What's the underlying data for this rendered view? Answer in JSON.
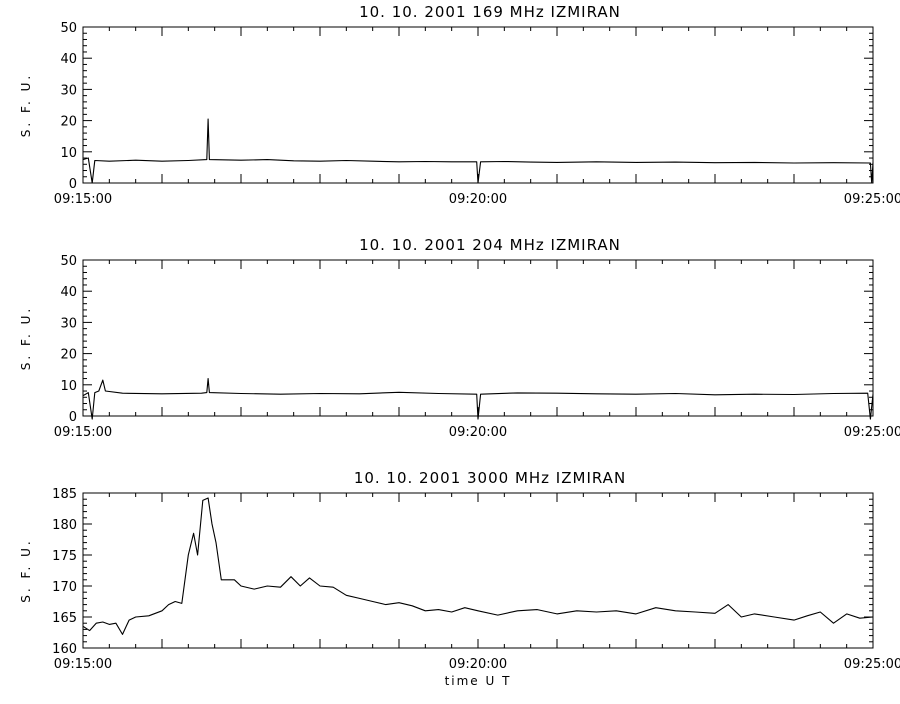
{
  "chart_data": [
    {
      "type": "line",
      "title": "10.  10.  2001    169  MHz    IZMIRAN",
      "ylabel": "S. F. U.",
      "xlabel": "",
      "ylim": [
        0,
        50
      ],
      "yticks": [
        0,
        10,
        20,
        30,
        40,
        50
      ],
      "xlim": [
        "09:15:00",
        "09:25:00"
      ],
      "xticks": [
        "09:15:00",
        "09:20:00",
        "09:25:00"
      ],
      "grid": false,
      "series": [
        {
          "points": [
            [
              "09:15:00",
              7.5
            ],
            [
              "09:15:04",
              8
            ],
            [
              "09:15:07",
              0
            ],
            [
              "09:15:09",
              7.2
            ],
            [
              "09:15:20",
              7.0
            ],
            [
              "09:15:40",
              7.3
            ],
            [
              "09:16:00",
              7.0
            ],
            [
              "09:16:20",
              7.2
            ],
            [
              "09:16:34",
              7.5
            ],
            [
              "09:16:35",
              20.5
            ],
            [
              "09:16:36",
              7.5
            ],
            [
              "09:17:00",
              7.3
            ],
            [
              "09:17:20",
              7.5
            ],
            [
              "09:17:40",
              7.1
            ],
            [
              "09:18:00",
              7.0
            ],
            [
              "09:18:20",
              7.2
            ],
            [
              "09:18:40",
              7.0
            ],
            [
              "09:19:00",
              6.8
            ],
            [
              "09:19:20",
              6.9
            ],
            [
              "09:19:40",
              6.8
            ],
            [
              "09:19:59",
              6.8
            ],
            [
              "09:20:00",
              0
            ],
            [
              "09:20:02",
              6.8
            ],
            [
              "09:20:20",
              6.9
            ],
            [
              "09:20:40",
              6.7
            ],
            [
              "09:21:00",
              6.6
            ],
            [
              "09:21:30",
              6.8
            ],
            [
              "09:22:00",
              6.6
            ],
            [
              "09:22:30",
              6.7
            ],
            [
              "09:23:00",
              6.5
            ],
            [
              "09:23:30",
              6.6
            ],
            [
              "09:24:00",
              6.4
            ],
            [
              "09:24:30",
              6.5
            ],
            [
              "09:24:58",
              6.4
            ],
            [
              "09:24:59",
              0
            ],
            [
              "09:25:00",
              6.5
            ]
          ]
        }
      ]
    },
    {
      "type": "line",
      "title": "10.  10.  2001    204  MHz    IZMIRAN",
      "ylabel": "S. F. U.",
      "xlabel": "",
      "ylim": [
        0,
        50
      ],
      "yticks": [
        0,
        10,
        20,
        30,
        40,
        50
      ],
      "xlim": [
        "09:15:00",
        "09:25:00"
      ],
      "xticks": [
        "09:15:00",
        "09:20:00",
        "09:25:00"
      ],
      "grid": false,
      "series": [
        {
          "points": [
            [
              "09:15:00",
              6.5
            ],
            [
              "09:15:04",
              7.5
            ],
            [
              "09:15:07",
              -1
            ],
            [
              "09:15:09",
              7.5
            ],
            [
              "09:15:12",
              8
            ],
            [
              "09:15:15",
              11.5
            ],
            [
              "09:15:17",
              8
            ],
            [
              "09:15:30",
              7.3
            ],
            [
              "09:16:00",
              7.1
            ],
            [
              "09:16:30",
              7.3
            ],
            [
              "09:16:34",
              7.5
            ],
            [
              "09:16:35",
              12
            ],
            [
              "09:16:36",
              7.5
            ],
            [
              "09:17:00",
              7.2
            ],
            [
              "09:17:30",
              7.0
            ],
            [
              "09:18:00",
              7.2
            ],
            [
              "09:18:30",
              7.1
            ],
            [
              "09:19:00",
              7.6
            ],
            [
              "09:19:30",
              7.2
            ],
            [
              "09:19:59",
              7.0
            ],
            [
              "09:20:00",
              -1
            ],
            [
              "09:20:02",
              7.0
            ],
            [
              "09:20:30",
              7.4
            ],
            [
              "09:21:00",
              7.3
            ],
            [
              "09:21:30",
              7.1
            ],
            [
              "09:22:00",
              7.0
            ],
            [
              "09:22:30",
              7.2
            ],
            [
              "09:23:00",
              6.8
            ],
            [
              "09:23:30",
              7.0
            ],
            [
              "09:24:00",
              6.9
            ],
            [
              "09:24:30",
              7.2
            ],
            [
              "09:24:56",
              7.3
            ],
            [
              "09:24:58",
              -1
            ],
            [
              "09:25:00",
              7.0
            ]
          ]
        }
      ]
    },
    {
      "type": "line",
      "title": "10.  10.  2001    3000  MHz    IZMIRAN",
      "ylabel": "S. F. U.",
      "xlabel": "time   U T",
      "ylim": [
        160,
        185
      ],
      "yticks": [
        160,
        165,
        170,
        175,
        180,
        185
      ],
      "xlim": [
        "09:15:00",
        "09:25:00"
      ],
      "xticks": [
        "09:15:00",
        "09:20:00",
        "09:25:00"
      ],
      "grid": false,
      "series": [
        {
          "points": [
            [
              "09:15:00",
              163.5
            ],
            [
              "09:15:05",
              162.8
            ],
            [
              "09:15:10",
              164.0
            ],
            [
              "09:15:15",
              164.2
            ],
            [
              "09:15:20",
              163.8
            ],
            [
              "09:15:25",
              164.0
            ],
            [
              "09:15:30",
              162.2
            ],
            [
              "09:15:35",
              164.5
            ],
            [
              "09:15:40",
              165.0
            ],
            [
              "09:15:50",
              165.2
            ],
            [
              "09:16:00",
              166.0
            ],
            [
              "09:16:05",
              167.0
            ],
            [
              "09:16:10",
              167.5
            ],
            [
              "09:16:15",
              167.2
            ],
            [
              "09:16:20",
              175.0
            ],
            [
              "09:16:24",
              178.5
            ],
            [
              "09:16:27",
              175.0
            ],
            [
              "09:16:31",
              183.8
            ],
            [
              "09:16:35",
              184.2
            ],
            [
              "09:16:38",
              180.0
            ],
            [
              "09:16:41",
              177.0
            ],
            [
              "09:16:45",
              171.0
            ],
            [
              "09:16:55",
              171.0
            ],
            [
              "09:17:00",
              170.0
            ],
            [
              "09:17:10",
              169.5
            ],
            [
              "09:17:20",
              170.0
            ],
            [
              "09:17:30",
              169.8
            ],
            [
              "09:17:38",
              171.5
            ],
            [
              "09:17:45",
              170.0
            ],
            [
              "09:17:52",
              171.3
            ],
            [
              "09:18:00",
              170.0
            ],
            [
              "09:18:10",
              169.8
            ],
            [
              "09:18:20",
              168.5
            ],
            [
              "09:18:30",
              168.0
            ],
            [
              "09:18:40",
              167.5
            ],
            [
              "09:18:50",
              167.0
            ],
            [
              "09:19:00",
              167.3
            ],
            [
              "09:19:10",
              166.8
            ],
            [
              "09:19:20",
              166.0
            ],
            [
              "09:19:30",
              166.2
            ],
            [
              "09:19:40",
              165.8
            ],
            [
              "09:19:50",
              166.5
            ],
            [
              "09:20:00",
              166.0
            ],
            [
              "09:20:15",
              165.3
            ],
            [
              "09:20:30",
              166.0
            ],
            [
              "09:20:45",
              166.2
            ],
            [
              "09:21:00",
              165.5
            ],
            [
              "09:21:15",
              166.0
            ],
            [
              "09:21:30",
              165.8
            ],
            [
              "09:21:45",
              166.0
            ],
            [
              "09:22:00",
              165.5
            ],
            [
              "09:22:15",
              166.5
            ],
            [
              "09:22:30",
              166.0
            ],
            [
              "09:22:45",
              165.8
            ],
            [
              "09:23:00",
              165.6
            ],
            [
              "09:23:10",
              167.0
            ],
            [
              "09:23:20",
              165.0
            ],
            [
              "09:23:30",
              165.5
            ],
            [
              "09:23:45",
              165.0
            ],
            [
              "09:24:00",
              164.5
            ],
            [
              "09:24:10",
              165.2
            ],
            [
              "09:24:20",
              165.8
            ],
            [
              "09:24:30",
              164.0
            ],
            [
              "09:24:40",
              165.5
            ],
            [
              "09:24:50",
              164.8
            ],
            [
              "09:25:00",
              165.0
            ]
          ]
        }
      ]
    }
  ]
}
